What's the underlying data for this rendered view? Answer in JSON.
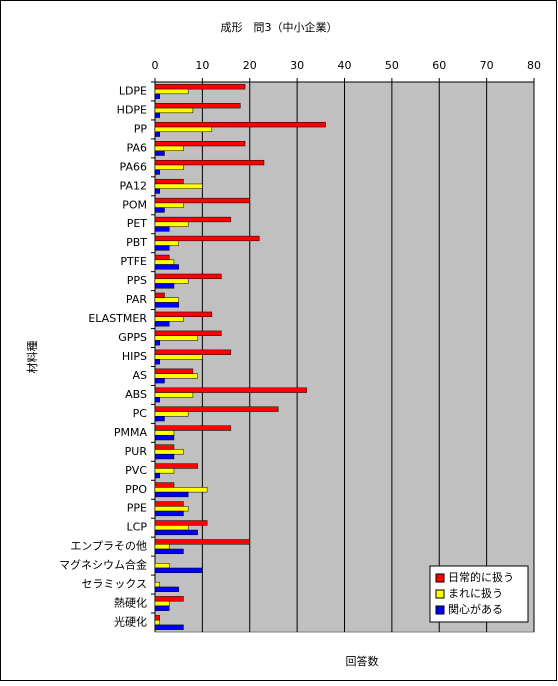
{
  "chart_data": {
    "type": "hbar",
    "title": "成形　問3（中小企業）",
    "x_label": "回答数",
    "y_label": "材料種",
    "categories": [
      "LDPE",
      "HDPE",
      "PP",
      "PA6",
      "PA66",
      "PA12",
      "POM",
      "PET",
      "PBT",
      "PTFE",
      "PPS",
      "PAR",
      "ELASTMER",
      "GPPS",
      "HIPS",
      "AS",
      "ABS",
      "PC",
      "PMMA",
      "PUR",
      "PVC",
      "PPO",
      "PPE",
      "LCP",
      "エンプラその他",
      "マグネシウム合金",
      "セラミックス",
      "熱硬化",
      "光硬化"
    ],
    "series": [
      {
        "name": "日常的に扱う",
        "color": "#ff0000",
        "values": [
          19,
          18,
          36,
          19,
          23,
          6,
          20,
          16,
          22,
          3,
          14,
          2,
          12,
          14,
          16,
          8,
          32,
          26,
          16,
          4,
          9,
          4,
          6,
          11,
          20,
          0,
          0,
          6,
          1
        ]
      },
      {
        "name": "まれに扱う",
        "color": "#ffff00",
        "values": [
          7,
          8,
          12,
          6,
          6,
          10,
          6,
          7,
          5,
          4,
          7,
          5,
          6,
          9,
          10,
          9,
          8,
          7,
          4,
          6,
          4,
          11,
          7,
          7,
          3,
          3,
          1,
          3,
          1
        ]
      },
      {
        "name": "関心がある",
        "color": "#0000ff",
        "values": [
          1,
          1,
          1,
          2,
          1,
          1,
          2,
          3,
          3,
          5,
          4,
          5,
          3,
          1,
          1,
          2,
          1,
          2,
          4,
          4,
          1,
          7,
          6,
          9,
          6,
          10,
          5,
          3,
          6
        ]
      }
    ],
    "xlim": [
      0,
      80
    ],
    "xticks": [
      0,
      10,
      20,
      30,
      40,
      50,
      60,
      70,
      80
    ],
    "grid": true,
    "legend": "lower right"
  }
}
